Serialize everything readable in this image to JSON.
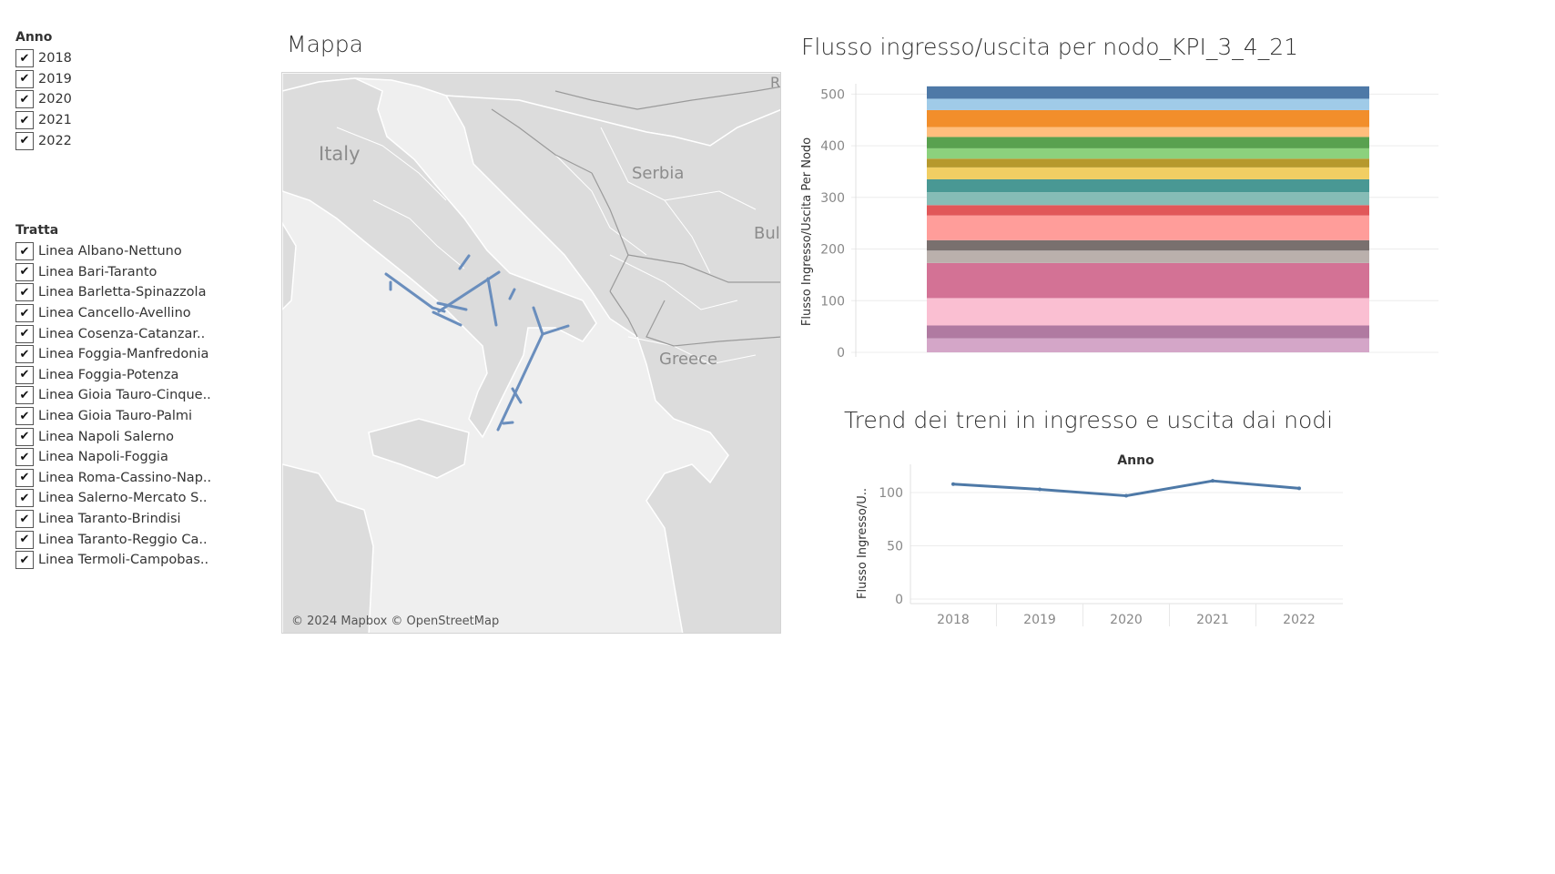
{
  "filters": {
    "anno": {
      "title": "Anno",
      "items": [
        "2018",
        "2019",
        "2020",
        "2021",
        "2022"
      ]
    },
    "tratta": {
      "title": "Tratta",
      "items": [
        "Linea Albano-Nettuno",
        "Linea Bari-Taranto",
        "Linea Barletta-Spinazzola",
        "Linea Cancello-Avellino",
        "Linea Cosenza-Catanzar..",
        "Linea Foggia-Manfredonia",
        "Linea Foggia-Potenza",
        "Linea Gioia Tauro-Cinque..",
        "Linea Gioia Tauro-Palmi",
        "Linea Napoli Salerno",
        "Linea Napoli-Foggia",
        "Linea Roma-Cassino-Nap..",
        "Linea Salerno-Mercato S..",
        "Linea Taranto-Brindisi",
        "Linea Taranto-Reggio Ca..",
        "Linea Termoli-Campobas.."
      ]
    },
    "checkmark": "✔"
  },
  "map": {
    "title": "Mappa",
    "labels": [
      "Italy",
      "Serbia",
      "Bulg",
      "Greece",
      "R"
    ],
    "credit": "© 2024 Mapbox © OpenStreetMap",
    "line_color": "#6a8ebd"
  },
  "chart_data": [
    {
      "type": "bar",
      "stacked": true,
      "title": "Flusso ingresso/uscita per nodo_KPI_3_4_21",
      "ylabel": "Flusso Ingresso/Uscita Per Nodo",
      "xlabel": "",
      "ylim": [
        0,
        520
      ],
      "yticks": [
        0,
        100,
        200,
        300,
        400,
        500
      ],
      "grid": true,
      "segments": [
        {
          "value": 27,
          "color": "#d4a6c8"
        },
        {
          "value": 25,
          "color": "#b07aa1"
        },
        {
          "value": 53,
          "color": "#fabfd2"
        },
        {
          "value": 68,
          "color": "#d37295"
        },
        {
          "value": 24,
          "color": "#bab0ac"
        },
        {
          "value": 20,
          "color": "#79706e"
        },
        {
          "value": 48,
          "color": "#ff9d9a"
        },
        {
          "value": 20,
          "color": "#e15759"
        },
        {
          "value": 25,
          "color": "#86bcb6"
        },
        {
          "value": 25,
          "color": "#499894"
        },
        {
          "value": 23,
          "color": "#f1ce63"
        },
        {
          "value": 17,
          "color": "#b6992d"
        },
        {
          "value": 20,
          "color": "#8cd17d"
        },
        {
          "value": 22,
          "color": "#59a14f"
        },
        {
          "value": 19,
          "color": "#ffbe7d"
        },
        {
          "value": 33,
          "color": "#f28e2b"
        },
        {
          "value": 22,
          "color": "#a0cbe8"
        },
        {
          "value": 24,
          "color": "#4e79a7"
        }
      ]
    },
    {
      "type": "line",
      "title": "Trend dei treni in ingresso e uscita dai nodi",
      "xlabel": "Anno",
      "ylabel": "Flusso Ingresso/U..",
      "x": [
        "2018",
        "2019",
        "2020",
        "2021",
        "2022"
      ],
      "series": [
        {
          "values": [
            108,
            103,
            97,
            111,
            104
          ],
          "color": "#4e79a7"
        }
      ],
      "ylim": [
        0,
        118
      ],
      "yticks": [
        0,
        50,
        100
      ],
      "grid": true
    }
  ]
}
